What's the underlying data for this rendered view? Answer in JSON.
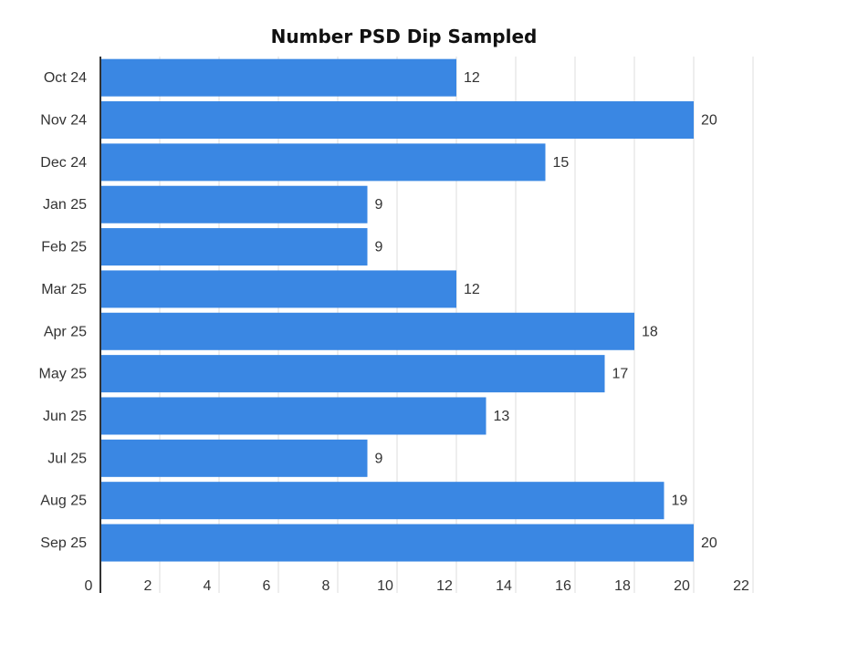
{
  "chart_data": {
    "type": "bar",
    "orientation": "horizontal",
    "title": "Number PSD Dip Sampled",
    "xlabel": "",
    "ylabel": "",
    "categories": [
      "Oct 24",
      "Nov 24",
      "Dec 24",
      "Jan 25",
      "Feb 25",
      "Mar 25",
      "Apr 25",
      "May 25",
      "Jun 25",
      "Jul 25",
      "Aug 25",
      "Sep 25"
    ],
    "values": [
      12,
      20,
      15,
      9,
      9,
      12,
      18,
      17,
      13,
      9,
      19,
      20
    ],
    "xlim": [
      0,
      22
    ],
    "x_ticks": [
      0,
      2,
      4,
      6,
      8,
      10,
      12,
      14,
      16,
      18,
      20,
      22
    ],
    "grid": "vertical",
    "legend": "none",
    "data_labels": true,
    "colors": {
      "bar": "#3a87e3",
      "grid": "#dddddd",
      "axis": "#333333",
      "label": "#333333"
    }
  }
}
